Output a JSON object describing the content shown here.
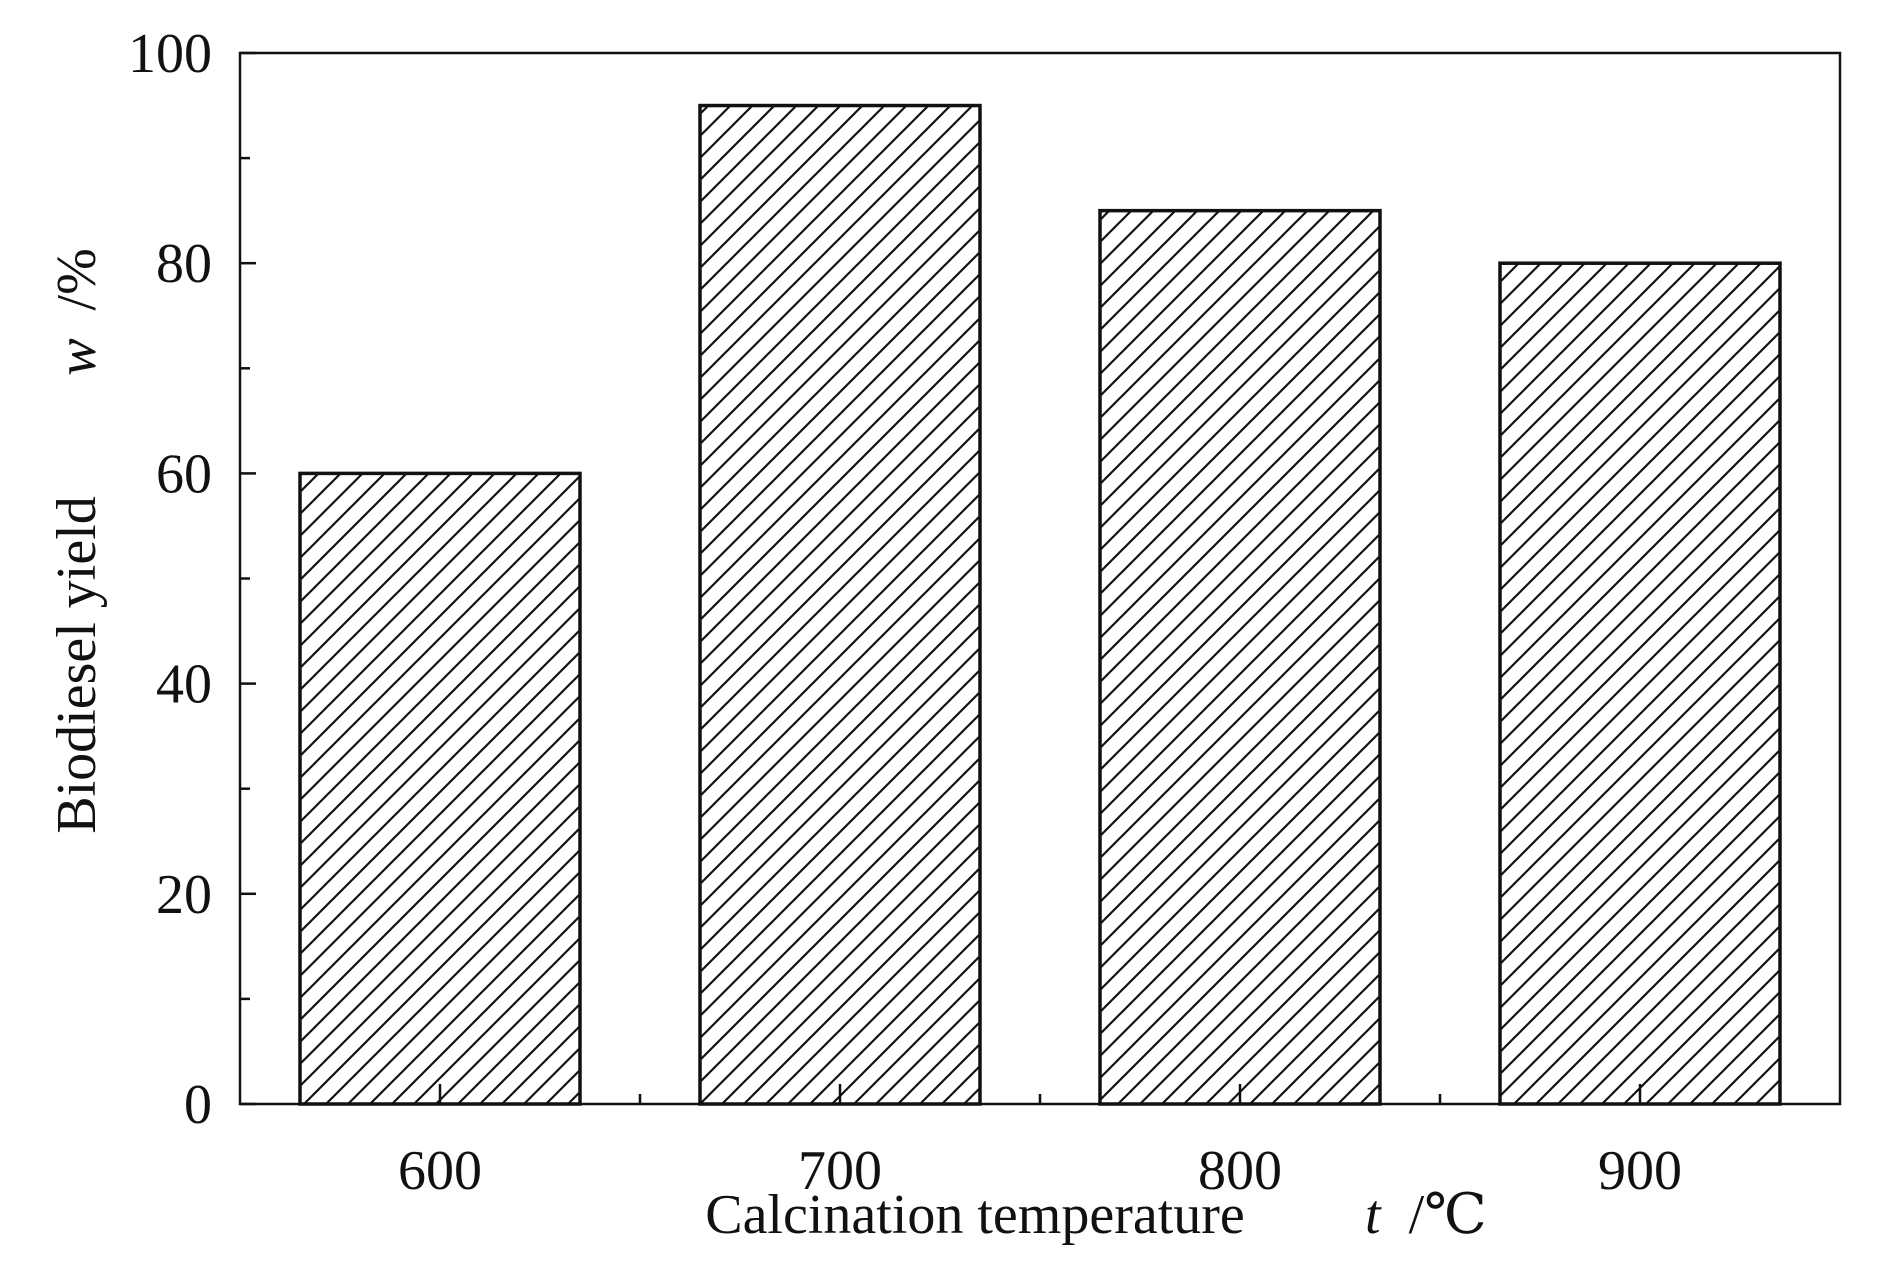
{
  "chart_data": {
    "type": "bar",
    "categories": [
      "600",
      "700",
      "800",
      "900"
    ],
    "values": [
      60,
      95,
      85,
      80
    ],
    "ylim": [
      0,
      100
    ],
    "yticks": [
      0,
      20,
      40,
      60,
      80,
      100
    ],
    "ytick_labels": [
      "0",
      "20",
      "40",
      "60",
      "80",
      "100"
    ],
    "y_minor_step": 10,
    "xlabel": {
      "text": "Calcination temperature",
      "variable": "t",
      "unit": "/℃"
    },
    "ylabel": {
      "text": "Biodiesel yield",
      "variable": "w",
      "unit": "/%"
    },
    "grid": false,
    "legend": "none",
    "bar_fill": "diagonal-hatch",
    "colors": {
      "ink": "#111111",
      "background": "#ffffff"
    }
  }
}
